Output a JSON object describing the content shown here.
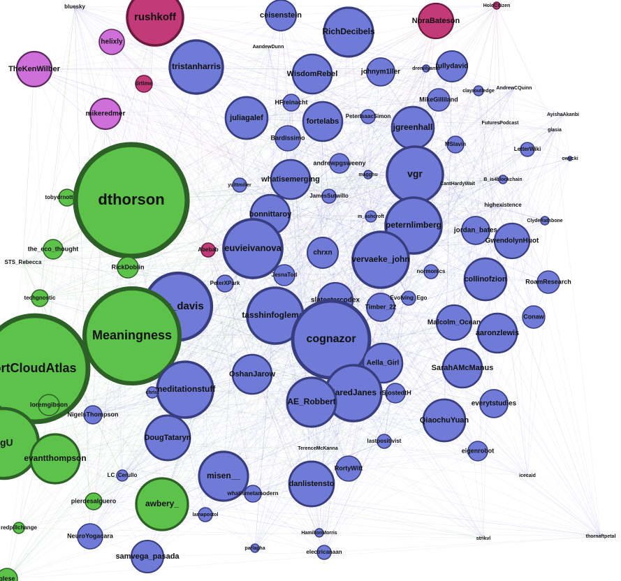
{
  "nodes": [
    {
      "label": "bluesky"
    },
    {
      "label": "rushkoff"
    },
    {
      "label": "ceisenstein"
    },
    {
      "label": "NoraBateson"
    },
    {
      "label": "HoloCitizen"
    },
    {
      "label": "helixly"
    },
    {
      "label": "RichDecibels"
    },
    {
      "label": "AandewDunn"
    },
    {
      "label": "fullydavid"
    },
    {
      "label": "TheKenWilber"
    },
    {
      "label": "tristanharris"
    },
    {
      "label": "WisdomRebel"
    },
    {
      "label": "johnym1ller"
    },
    {
      "label": "dremilyanfo"
    },
    {
      "label": "drtime"
    },
    {
      "label": "clayroutledge"
    },
    {
      "label": "AndrewCQuinn"
    },
    {
      "label": "mikeredmer"
    },
    {
      "label": "juliagalef"
    },
    {
      "label": "fortelabs"
    },
    {
      "label": "HFreinacht"
    },
    {
      "label": "PeterIsaacSimon"
    },
    {
      "label": "MikeGilliland"
    },
    {
      "label": "jgreenhall"
    },
    {
      "label": "AyishaAkanbi"
    },
    {
      "label": "FuturesPodcast"
    },
    {
      "label": "glasia"
    },
    {
      "label": "LetterWiki"
    },
    {
      "label": "owycki"
    },
    {
      "label": "Bardissimo"
    },
    {
      "label": "MSlavin"
    },
    {
      "label": "andrewpgsweeny"
    },
    {
      "label": "vgr"
    },
    {
      "label": "whatisemerging"
    },
    {
      "label": "magghu"
    },
    {
      "label": "yulttmiller"
    },
    {
      "label": "CantHardyWait"
    },
    {
      "label": "B_is4blockchain"
    },
    {
      "label": "tobydrnottoby20"
    },
    {
      "label": "dthorson"
    },
    {
      "label": "JamesSutwillo"
    },
    {
      "label": "highexistence"
    },
    {
      "label": "bonnittaroy"
    },
    {
      "label": "m_ashcroft"
    },
    {
      "label": "ClydeRathbone"
    },
    {
      "label": "peternlimberg"
    },
    {
      "label": "jordan_bates"
    },
    {
      "label": "GwendolynHuot"
    },
    {
      "label": "the_eco_thought"
    },
    {
      "label": "Abebab"
    },
    {
      "label": "euvieivanova"
    },
    {
      "label": "chrxn"
    },
    {
      "label": "vervaeke_john"
    },
    {
      "label": "STS_Rebecca"
    },
    {
      "label": "RickDoblin"
    },
    {
      "label": "JesnaTod"
    },
    {
      "label": "normonics"
    },
    {
      "label": "collinofzion"
    },
    {
      "label": "PeterXPark"
    },
    {
      "label": "RoamResearch"
    },
    {
      "label": "techgnostic"
    },
    {
      "label": "erik_davis"
    },
    {
      "label": "slatestarcodex"
    },
    {
      "label": "Timber_22"
    },
    {
      "label": "Evolving_Ego"
    },
    {
      "label": "tasshinfogleman"
    },
    {
      "label": "Conaw"
    },
    {
      "label": "Meaningness"
    },
    {
      "label": "cognazor"
    },
    {
      "label": "Malcolm_Ocean"
    },
    {
      "label": "aaronzlewis"
    },
    {
      "label": "ortCloudAtlas"
    },
    {
      "label": "Aella_Girl"
    },
    {
      "label": "OshanJarow"
    },
    {
      "label": "SarahAMcManus"
    },
    {
      "label": "JaredJanes"
    },
    {
      "label": "rSjostedtH"
    },
    {
      "label": "meditationstuff"
    },
    {
      "label": "christ"
    },
    {
      "label": "AE_Robbert"
    },
    {
      "label": "loremgibson"
    },
    {
      "label": "everytstudies"
    },
    {
      "label": "NigelsThompson"
    },
    {
      "label": "QiaochuYuan"
    },
    {
      "label": "DougTataryn"
    },
    {
      "label": "ngU"
    },
    {
      "label": "evantthompson"
    },
    {
      "label": "TerenceMcKanna"
    },
    {
      "label": "lastpositivist"
    },
    {
      "label": "eigenrobot"
    },
    {
      "label": "RortyWitt"
    },
    {
      "label": "misen__"
    },
    {
      "label": "danlistensto"
    },
    {
      "label": "LC_Cerullo"
    },
    {
      "label": "icecaid"
    },
    {
      "label": "pierdesalguero"
    },
    {
      "label": "awbery_"
    },
    {
      "label": "whatismetamodern"
    },
    {
      "label": "lamapostol"
    },
    {
      "label": "NeuroYogacara"
    },
    {
      "label": "redpillchange"
    },
    {
      "label": "HamiltonMorris"
    },
    {
      "label": "strikvl"
    },
    {
      "label": "thornaftpetal"
    },
    {
      "label": "parlapha"
    },
    {
      "label": "electricanaan"
    },
    {
      "label": "samvega_pasada"
    },
    {
      "label": "glese"
    }
  ]
}
